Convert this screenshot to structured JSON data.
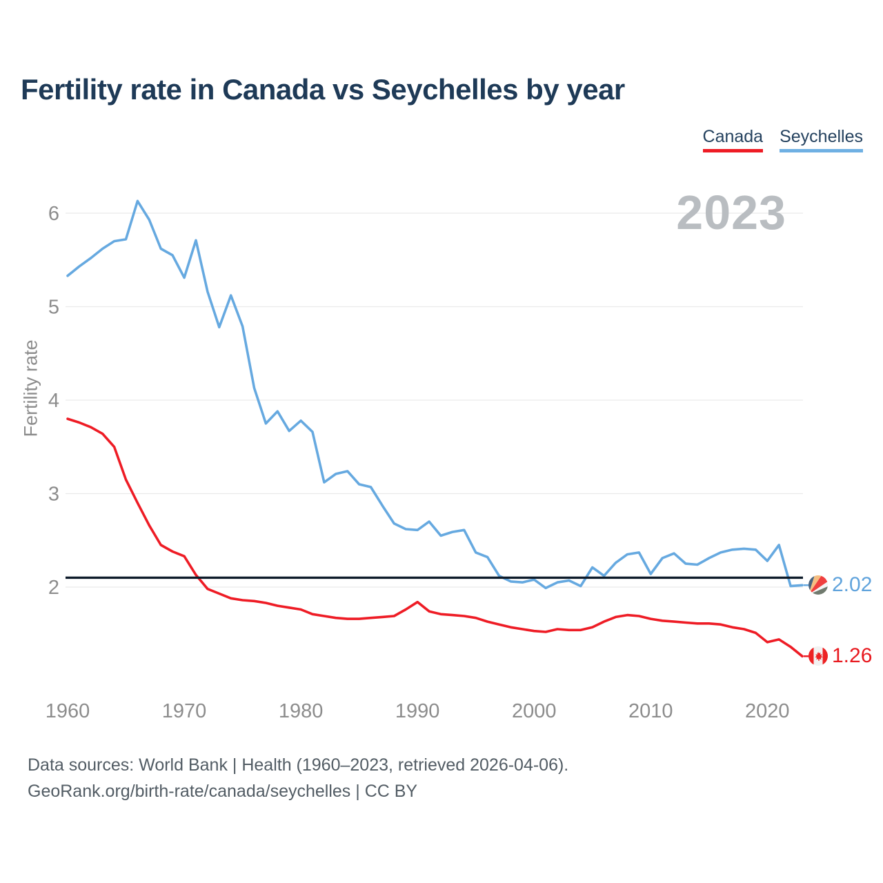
{
  "title": "Fertility rate in Canada vs Seychelles by year",
  "watermark": "2023",
  "legend": [
    {
      "label": "Canada",
      "color": "#ee1c25"
    },
    {
      "label": "Seychelles",
      "color": "#6fb0e3"
    }
  ],
  "end_labels": [
    {
      "series": "Seychelles",
      "value": "2.02",
      "color": "#60a3dc"
    },
    {
      "series": "Canada",
      "value": "1.26",
      "color": "#e8191f"
    }
  ],
  "footer": {
    "line1": "Data sources: World Bank | Health (1960–2023, retrieved 2026-04-06).",
    "line2": "GeoRank.org/birth-rate/canada/seychelles | CC BY"
  },
  "chart_data": {
    "type": "line",
    "title": "Fertility rate in Canada vs Seychelles by year",
    "xlabel": "",
    "ylabel": "Fertility rate",
    "x_ticks": [
      1960,
      1970,
      1980,
      1990,
      2000,
      2010,
      2020
    ],
    "y_ticks": [
      2,
      3,
      4,
      5,
      6
    ],
    "xlim": [
      1960,
      2023
    ],
    "ylim": [
      1.1,
      6.35
    ],
    "grid": "horizontal",
    "legend_position": "top-right",
    "reference_line": 2.1,
    "x": [
      1960,
      1961,
      1962,
      1963,
      1964,
      1965,
      1966,
      1967,
      1968,
      1969,
      1970,
      1971,
      1972,
      1973,
      1974,
      1975,
      1976,
      1977,
      1978,
      1979,
      1980,
      1981,
      1982,
      1983,
      1984,
      1985,
      1986,
      1987,
      1988,
      1989,
      1990,
      1991,
      1992,
      1993,
      1994,
      1995,
      1996,
      1997,
      1998,
      1999,
      2000,
      2001,
      2002,
      2003,
      2004,
      2005,
      2006,
      2007,
      2008,
      2009,
      2010,
      2011,
      2012,
      2013,
      2014,
      2015,
      2016,
      2017,
      2018,
      2019,
      2020,
      2021,
      2022,
      2023
    ],
    "series": [
      {
        "name": "Seychelles",
        "color": "#66a9e0",
        "end_value": 2.02,
        "values": [
          5.33,
          5.43,
          5.52,
          5.62,
          5.7,
          5.72,
          6.13,
          5.93,
          5.62,
          5.55,
          5.31,
          5.71,
          5.16,
          4.78,
          5.12,
          4.79,
          4.13,
          3.75,
          3.88,
          3.67,
          3.78,
          3.66,
          3.12,
          3.21,
          3.24,
          3.1,
          3.07,
          2.87,
          2.68,
          2.62,
          2.61,
          2.7,
          2.55,
          2.59,
          2.61,
          2.37,
          2.32,
          2.12,
          2.06,
          2.05,
          2.08,
          1.99,
          2.05,
          2.07,
          2.01,
          2.21,
          2.12,
          2.26,
          2.35,
          2.37,
          2.14,
          2.31,
          2.36,
          2.25,
          2.24,
          2.31,
          2.37,
          2.4,
          2.41,
          2.4,
          2.28,
          2.45,
          2.01,
          2.02
        ]
      },
      {
        "name": "Canada",
        "color": "#ee1c25",
        "end_value": 1.26,
        "values": [
          3.8,
          3.76,
          3.71,
          3.64,
          3.5,
          3.15,
          2.9,
          2.66,
          2.45,
          2.38,
          2.33,
          2.13,
          1.98,
          1.93,
          1.88,
          1.86,
          1.85,
          1.83,
          1.8,
          1.78,
          1.76,
          1.71,
          1.69,
          1.67,
          1.66,
          1.66,
          1.67,
          1.68,
          1.69,
          1.76,
          1.84,
          1.74,
          1.71,
          1.7,
          1.69,
          1.67,
          1.63,
          1.6,
          1.57,
          1.55,
          1.53,
          1.52,
          1.55,
          1.54,
          1.54,
          1.57,
          1.63,
          1.68,
          1.7,
          1.69,
          1.66,
          1.64,
          1.63,
          1.62,
          1.61,
          1.61,
          1.6,
          1.57,
          1.55,
          1.51,
          1.41,
          1.44,
          1.36,
          1.26
        ]
      }
    ]
  }
}
